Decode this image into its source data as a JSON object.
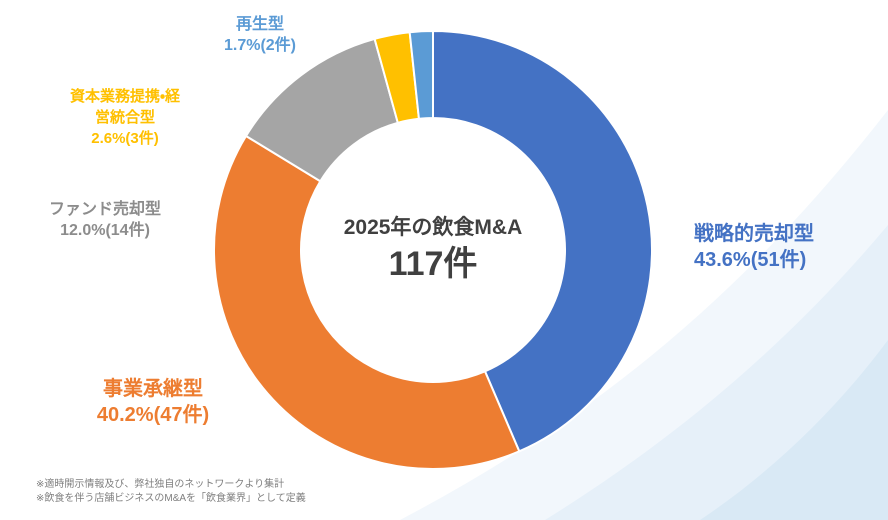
{
  "page": {
    "footnotes": [
      "※適時開示情報及び、弊社独自のネットワークより集計",
      "※飲食を伴う店舗ビジネスのM&Aを「飲食業界」として定義"
    ]
  },
  "chart_data": {
    "type": "pie",
    "subtype": "donut",
    "title": "2025年の飲食M&A",
    "center": {
      "line1": "2025年の飲食M&A",
      "line2": "117件"
    },
    "total_count": 117,
    "unit": "件",
    "start_angle_deg": 0,
    "direction": "clockwise",
    "segments": [
      {
        "label": "戦略的売却型",
        "percent": 43.6,
        "count": 51,
        "value_display": "43.6%(51件)",
        "color": "#4472C4"
      },
      {
        "label": "事業承継型",
        "percent": 40.2,
        "count": 47,
        "value_display": "40.2%(47件)",
        "color": "#ED7D31"
      },
      {
        "label": "ファンド売却型",
        "percent": 12.0,
        "count": 14,
        "value_display": "12.0%(14件)",
        "color": "#A5A5A5"
      },
      {
        "label": "資本業務提携・経営統合型",
        "percent": 2.6,
        "count": 3,
        "value_display": "2.6%(3件)",
        "color": "#FFC000"
      },
      {
        "label": "再生型",
        "percent": 1.7,
        "count": 2,
        "value_display": "1.7%(2件)",
        "color": "#5B9BD5"
      }
    ],
    "callouts": [
      {
        "id": "senryaku",
        "lines": [
          "戦略的売却型",
          "43.6%(51件)"
        ],
        "color": "#4472C4"
      },
      {
        "id": "jigyo",
        "lines": [
          "事業承継型",
          "40.2%(47件)"
        ],
        "color": "#ED7D31"
      },
      {
        "id": "fund",
        "lines": [
          "ファンド売却型",
          "12.0%(14件)"
        ],
        "color": "#8C8C8C"
      },
      {
        "id": "shihon",
        "lines": [
          "資本業務提携・経",
          "営統合型",
          "2.6%(3件)"
        ],
        "color": "#FFC000"
      },
      {
        "id": "saisei",
        "lines": [
          "再生型",
          "1.7%(2件)"
        ],
        "color": "#5B9BD5"
      }
    ],
    "colors": {
      "center_text": "#404040",
      "footnote_text": "#7F7F7F",
      "background_swoosh": "#E3EEF8"
    }
  }
}
